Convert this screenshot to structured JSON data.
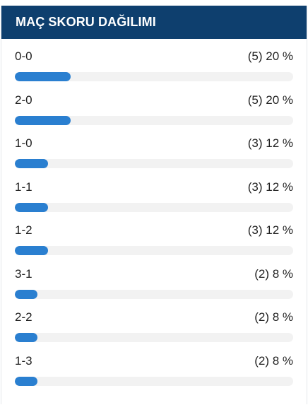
{
  "header": {
    "title": "MAÇ SKORU DAĞILIMI"
  },
  "colors": {
    "header_bg": "#0e3f6e",
    "bar_fill": "#2a7fd0",
    "bar_track": "#f2f2f2"
  },
  "scores": [
    {
      "score": "0-0",
      "count": 5,
      "percent": 20,
      "value_text": "(5) 20 %"
    },
    {
      "score": "2-0",
      "count": 5,
      "percent": 20,
      "value_text": "(5) 20 %"
    },
    {
      "score": "1-0",
      "count": 3,
      "percent": 12,
      "value_text": "(3) 12 %"
    },
    {
      "score": "1-1",
      "count": 3,
      "percent": 12,
      "value_text": "(3) 12 %"
    },
    {
      "score": "1-2",
      "count": 3,
      "percent": 12,
      "value_text": "(3) 12 %"
    },
    {
      "score": "3-1",
      "count": 2,
      "percent": 8,
      "value_text": "(2) 8 %"
    },
    {
      "score": "2-2",
      "count": 2,
      "percent": 8,
      "value_text": "(2) 8 %"
    },
    {
      "score": "1-3",
      "count": 2,
      "percent": 8,
      "value_text": "(2) 8 %"
    }
  ]
}
